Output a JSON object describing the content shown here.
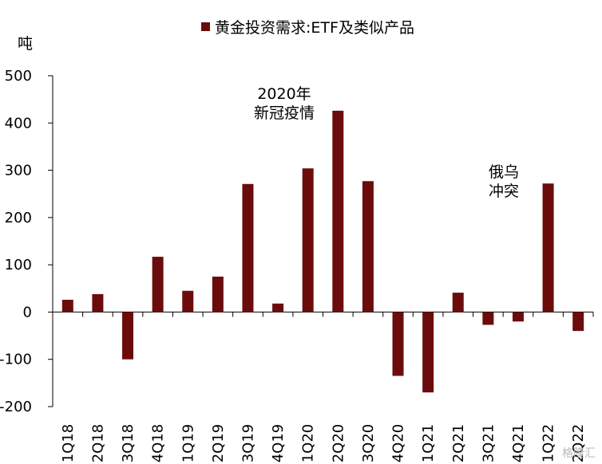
{
  "chart_data": {
    "type": "bar",
    "legend": "黄金投资需求:ETF及类似产品",
    "ylabel": "吨",
    "ylim": [
      -200,
      500
    ],
    "yticks": [
      -200,
      -100,
      0,
      100,
      200,
      300,
      400,
      500
    ],
    "categories": [
      "1Q18",
      "2Q18",
      "3Q18",
      "4Q18",
      "1Q19",
      "2Q19",
      "3Q19",
      "4Q19",
      "1Q20",
      "2Q20",
      "3Q20",
      "4Q20",
      "1Q21",
      "2Q21",
      "3Q21",
      "4Q21",
      "1Q22",
      "2Q22"
    ],
    "values": [
      26,
      38,
      -100,
      117,
      45,
      75,
      271,
      18,
      304,
      426,
      277,
      -135,
      -170,
      41,
      -27,
      -20,
      272,
      -40
    ],
    "annotations": [
      "2020年\n新冠疫情",
      "俄乌\n冲突"
    ],
    "bar_color": "#6b0c0c",
    "grid": false
  },
  "watermark": "格隆汇"
}
